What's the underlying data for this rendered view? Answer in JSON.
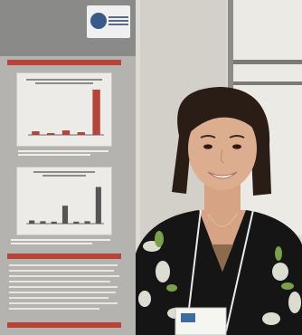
{
  "scene": {
    "description_icons": [
      "poster-logo-icon"
    ],
    "poster": {
      "header_bg": "#8a8a88",
      "accent": "#b5453a",
      "panel_bg": "#ecebe8"
    },
    "chart1": {
      "bars": [
        {
          "value": 0.08,
          "color": "#b5453a"
        },
        {
          "value": 0.04,
          "color": "#b5453a"
        },
        {
          "value": 0.1,
          "color": "#b5453a"
        },
        {
          "value": 0.06,
          "color": "#b5453a"
        },
        {
          "value": 1.0,
          "color": "#b5453a"
        }
      ]
    },
    "chart2": {
      "bars": [
        {
          "value": 0.08,
          "color": "#555555"
        },
        {
          "value": 0.06,
          "color": "#555555"
        },
        {
          "value": 0.05,
          "color": "#555555"
        },
        {
          "value": 0.45,
          "color": "#555555"
        },
        {
          "value": 0.05,
          "color": "#555555"
        },
        {
          "value": 0.06,
          "color": "#555555"
        },
        {
          "value": 0.92,
          "color": "#555555"
        }
      ]
    }
  }
}
